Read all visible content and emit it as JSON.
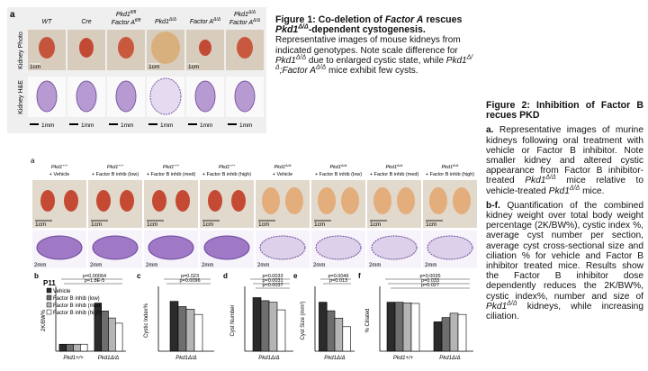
{
  "figure1": {
    "panel_label": "a",
    "columns": [
      {
        "lines": [
          {
            "text": "WT"
          }
        ]
      },
      {
        "lines": [
          {
            "text": "Cre"
          }
        ]
      },
      {
        "lines": [
          {
            "text": "Pkd1",
            "sup": "fl/fl"
          },
          {
            "text": "Factor A",
            "sup": "fl/fl"
          }
        ]
      },
      {
        "lines": [
          {
            "text": "Pkd1",
            "sup": "Δ/Δ"
          }
        ]
      },
      {
        "lines": [
          {
            "text": "Factor A",
            "sup": "Δ/Δ"
          }
        ]
      },
      {
        "lines": [
          {
            "text": "Pkd1",
            "sup": "Δ/Δ"
          },
          {
            "text": "Factor A",
            "sup": "Δ/Δ"
          }
        ]
      }
    ],
    "row_labels": [
      "Kidney Photo",
      "Kidney H&E"
    ],
    "photo_scale_labels": [
      "1cm",
      null,
      null,
      "1cm",
      "1cm",
      null
    ],
    "he_scale_labels": [
      "1mm",
      "1mm",
      "1mm",
      "1mm",
      "1mm",
      "1mm"
    ]
  },
  "caption1": {
    "title": [
      "Figure 1: Co-deletion of ",
      "Factor A",
      " rescues ",
      "Pkd1",
      "Δ/Δ",
      "-dependent cystogenesis."
    ],
    "body": [
      "Representative images of mouse kidneys from indicated genotypes. Note scale difference for ",
      "Pkd1",
      "Δ/Δ",
      " due to enlarged cystic state, while ",
      "Pkd1",
      "Δ/Δ",
      ";Factor A",
      "Δ/Δ",
      " mice exhibit few cysts."
    ]
  },
  "caption2": {
    "title": "Figure 2: Inhibition of Factor B recues PKD",
    "a_label": "a.",
    "a_body": [
      "Representative images of murine kidneys following oral treatment with vehicle or Factor B inhibitor. Note smaller kidney and altered cystic appearance from Factor B inhibitor-treated ",
      "Pkd1",
      "Δ/Δ",
      " mice relative to vehicle-treated ",
      "Pkd1",
      "Δ/Δ",
      " mice."
    ],
    "bf_label": "b-f.",
    "bf_body": [
      "Quantification of the combined kidney weight over total body weight percentage (2K/BW%), cystic index %, average cyst number per section, average cyst cross-sectional size and ciliation % for vehicle and Factor B inhibitor treated mice. Results show the Factor B inhibitor dose dependently reduces the 2K/BW%, cystic index%, number and size of ",
      "Pkd1",
      "Δ/Δ",
      " kidneys, while increasing ciliation."
    ]
  },
  "figure2": {
    "panel_label": "a",
    "columns": [
      {
        "gene": "Pkd1",
        "sup": "+/+",
        "treatment": "+ Vehicle"
      },
      {
        "gene": "Pkd1",
        "sup": "+/+",
        "treatment": "+ Factor B inhib (low)"
      },
      {
        "gene": "Pkd1",
        "sup": "+/+",
        "treatment": "+ Factor B inhib (med)"
      },
      {
        "gene": "Pkd1",
        "sup": "+/+",
        "treatment": "+ Factor B inhib (high)"
      },
      {
        "gene": "Pkd1",
        "sup": "Δ/Δ",
        "treatment": "+ Vehicle"
      },
      {
        "gene": "Pkd1",
        "sup": "Δ/Δ",
        "treatment": "+ Factor B inhib (low)"
      },
      {
        "gene": "Pkd1",
        "sup": "Δ/Δ",
        "treatment": "+ Factor B inhib (med)"
      },
      {
        "gene": "Pkd1",
        "sup": "Δ/Δ",
        "treatment": "+ Factor B inhib (high)"
      }
    ],
    "photo_scale_labels": [
      "1cm",
      "1cm",
      "1cm",
      "1cm",
      "1cm",
      "1cm",
      "1cm",
      "1cm"
    ],
    "he_scale_labels": [
      "2mm",
      "2mm",
      "2mm",
      "2mm",
      "2mm",
      "2mm",
      "2mm",
      "2mm"
    ]
  },
  "chart_data": [
    {
      "type": "bar",
      "panel_label": "b",
      "title": "P11",
      "ylabel": "2K/BW%",
      "categories": [
        "Pkd1+/+",
        "Pkd1Δ/Δ"
      ],
      "ylim": [
        0,
        70
      ],
      "annotations": [
        "p=0.00064",
        "p=1.8E-5"
      ],
      "series": [
        {
          "name": "Vehicle",
          "color": "#2b2b2b",
          "values": [
            8,
            55
          ]
        },
        {
          "name": "Factor B inhib (low)",
          "color": "#6e6e6e",
          "values": [
            8,
            46
          ]
        },
        {
          "name": "Factor B inhib (med)",
          "color": "#b5b5b5",
          "values": [
            8,
            38
          ]
        },
        {
          "name": "Factor B inhib (high)",
          "color": "#ffffff",
          "values": [
            8,
            32
          ]
        }
      ]
    },
    {
      "type": "bar",
      "panel_label": "c",
      "ylabel": "Cystic Index%",
      "categories": [
        "Pkd1Δ/Δ"
      ],
      "ylim": [
        0,
        70
      ],
      "annotations": [
        "p=0.023",
        "p=0.0096"
      ],
      "series": [
        {
          "color": "#2b2b2b",
          "values": [
            57
          ]
        },
        {
          "color": "#6e6e6e",
          "values": [
            51
          ]
        },
        {
          "color": "#b5b5b5",
          "values": [
            48
          ]
        },
        {
          "color": "#ffffff",
          "values": [
            42
          ]
        }
      ]
    },
    {
      "type": "bar",
      "panel_label": "d",
      "ylabel": "Cyst Number",
      "categories": [
        "Pkd1Δ/Δ"
      ],
      "ylim": [
        0,
        400
      ],
      "annotations": [
        "p=0.0033",
        "p=0.0031",
        "p=0.0037"
      ],
      "series": [
        {
          "color": "#2b2b2b",
          "values": [
            350
          ]
        },
        {
          "color": "#6e6e6e",
          "values": [
            330
          ]
        },
        {
          "color": "#b5b5b5",
          "values": [
            320
          ]
        },
        {
          "color": "#ffffff",
          "values": [
            270
          ]
        }
      ]
    },
    {
      "type": "bar",
      "panel_label": "e",
      "ylabel": "Cyst Size (mm²)",
      "categories": [
        "Pkd1Δ/Δ"
      ],
      "ylim": [
        0,
        0.05
      ],
      "annotations": [
        "p=0.0046",
        "p=0.013"
      ],
      "series": [
        {
          "color": "#2b2b2b",
          "values": [
            0.04
          ]
        },
        {
          "color": "#6e6e6e",
          "values": [
            0.033
          ]
        },
        {
          "color": "#b5b5b5",
          "values": [
            0.027
          ]
        },
        {
          "color": "#ffffff",
          "values": [
            0.02
          ]
        }
      ]
    },
    {
      "type": "bar",
      "panel_label": "f",
      "ylabel": "% Ciliated",
      "categories": [
        "Pkd1+/+",
        "Pkd1Δ/Δ"
      ],
      "ylim": [
        0,
        100
      ],
      "annotations": [
        "p=0.0035",
        "p=0.033",
        "p=0.027"
      ],
      "series": [
        {
          "color": "#2b2b2b",
          "values": [
            80,
            48
          ]
        },
        {
          "color": "#6e6e6e",
          "values": [
            80,
            55
          ]
        },
        {
          "color": "#b5b5b5",
          "values": [
            79,
            62
          ]
        },
        {
          "color": "#ffffff",
          "values": [
            78,
            60
          ]
        }
      ]
    }
  ]
}
